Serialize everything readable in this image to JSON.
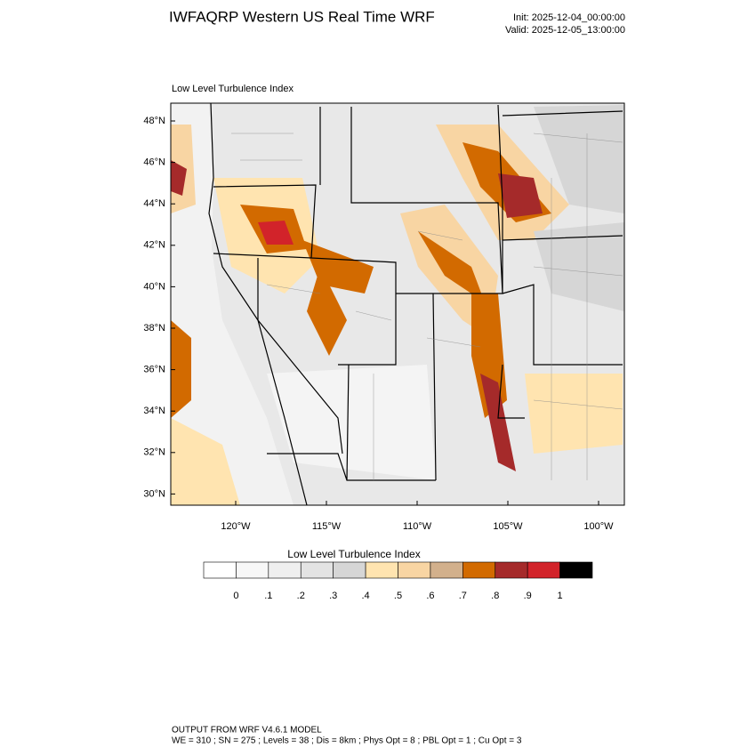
{
  "header": {
    "title": "IWFAQRP Western US Real Time WRF",
    "init": "Init: 2025-12-04_00:00:00",
    "valid": "Valid: 2025-12-05_13:00:00"
  },
  "map": {
    "subtitle": "Low Level Turbulence Index",
    "lat_ticks": [
      {
        "value": 48,
        "label": "48°N"
      },
      {
        "value": 46,
        "label": "46°N"
      },
      {
        "value": 44,
        "label": "44°N"
      },
      {
        "value": 42,
        "label": "42°N"
      },
      {
        "value": 40,
        "label": "40°N"
      },
      {
        "value": 38,
        "label": "38°N"
      },
      {
        "value": 36,
        "label": "36°N"
      },
      {
        "value": 34,
        "label": "34°N"
      },
      {
        "value": 32,
        "label": "32°N"
      },
      {
        "value": 30,
        "label": "30°N"
      }
    ],
    "lon_ticks": [
      {
        "value": -120,
        "label": "120°W"
      },
      {
        "value": -115,
        "label": "115°W"
      },
      {
        "value": -110,
        "label": "110°W"
      },
      {
        "value": -105,
        "label": "105°W"
      },
      {
        "value": -100,
        "label": "100°W"
      }
    ]
  },
  "colorbar": {
    "title": "Low Level Turbulence Index",
    "colors": [
      "#ffffff",
      "#f7f7f7",
      "#efefef",
      "#e3e3e3",
      "#d6d6d6",
      "#ffe4b0",
      "#f8d5a3",
      "#d2b08c",
      "#d26a00",
      "#a52a2a",
      "#d2232a",
      "#000000"
    ],
    "levels": [
      0,
      {
        "value": 0.1,
        "label": ".1"
      },
      {
        "value": 0.2,
        "label": ".2"
      },
      {
        "value": 0.3,
        "label": ".3"
      },
      {
        "value": 0.4,
        "label": ".4"
      },
      {
        "value": 0.5,
        "label": ".5"
      },
      {
        "value": 0.6,
        "label": ".6"
      },
      {
        "value": 0.7,
        "label": ".7"
      },
      {
        "value": 0.8,
        "label": ".8"
      },
      {
        "value": 0.9,
        "label": ".9"
      },
      1
    ]
  },
  "footer": {
    "line1": "OUTPUT FROM WRF V4.6.1 MODEL",
    "line2": "WE = 310 ; SN = 275 ; Levels = 38 ; Dis = 8km ; Phys Opt = 8 ; PBL Opt = 1 ; Cu Opt = 3"
  }
}
